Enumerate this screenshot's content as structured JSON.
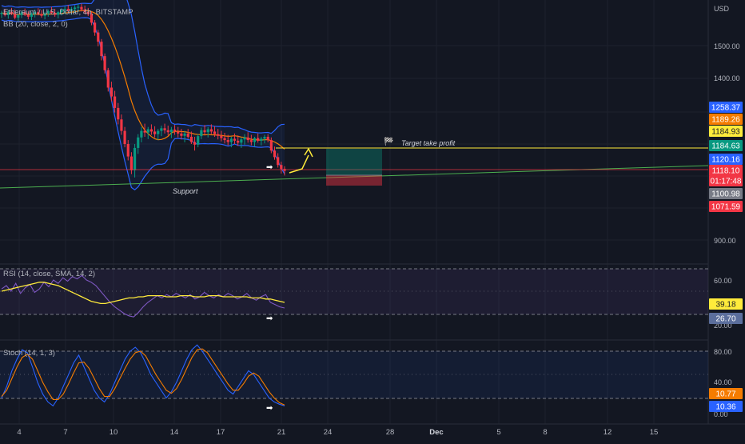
{
  "header": {
    "symbol_line": "Ethereum / U.S. Dollar, 4h, BITSTAMP",
    "bb_line": "BB (20, close, 2, 0)"
  },
  "price_axis": {
    "currency": "USD",
    "ticks": [
      "1500.00",
      "1400.00",
      "900.00"
    ],
    "tags": [
      {
        "label": "1258.37",
        "bg": "#2962ff",
        "fg": "#ffffff"
      },
      {
        "label": "1189.26",
        "bg": "#f57c00",
        "fg": "#ffffff"
      },
      {
        "label": "1184.93",
        "bg": "#ffeb3b",
        "fg": "#131722"
      },
      {
        "label": "1184.63",
        "bg": "#089981",
        "fg": "#ffffff"
      },
      {
        "label": "1120.16",
        "bg": "#2962ff",
        "fg": "#ffffff"
      },
      {
        "label": "1118.10",
        "bg": "#f23645",
        "fg": "#ffffff"
      },
      {
        "label": "01:17:48",
        "bg": "#f23645",
        "fg": "#ffffff"
      },
      {
        "label": "1100.98",
        "bg": "#787b86",
        "fg": "#ffffff"
      },
      {
        "label": "1071.59",
        "bg": "#f23645",
        "fg": "#ffffff"
      }
    ]
  },
  "annotations": {
    "target": "Target take profit",
    "support": "Support"
  },
  "rsi": {
    "label": "RSI (14, close, SMA, 14, 2)",
    "ticks": [
      "60.00",
      "20.00"
    ],
    "tags": [
      {
        "label": "39.18",
        "bg": "#ffeb3b",
        "fg": "#131722"
      },
      {
        "label": "26.70",
        "bg": "#5b6e9c",
        "fg": "#ffffff"
      }
    ]
  },
  "stoch": {
    "label": "Stoch (14, 1, 3)",
    "ticks": [
      "80.00",
      "40.00",
      "0.00"
    ],
    "tags": [
      {
        "label": "10.77",
        "bg": "#f57c00",
        "fg": "#ffffff"
      },
      {
        "label": "10.36",
        "bg": "#2962ff",
        "fg": "#ffffff"
      }
    ]
  },
  "time_axis": {
    "ticks": [
      "4",
      "7",
      "10",
      "14",
      "17",
      "21",
      "24",
      "28",
      "Dec",
      "5",
      "8",
      "12",
      "15"
    ]
  },
  "colors": {
    "up": "#089981",
    "down": "#f23645",
    "bb_band": "#2962ff",
    "bb_basis": "#f57c00",
    "rsi_line": "#7e57c2",
    "rsi_ma": "#ffeb3b",
    "stoch_k": "#2962ff",
    "stoch_d": "#f57c00",
    "target_line": "#ffeb3b",
    "support_line": "#4caf50"
  },
  "chart_data": [
    {
      "type": "candlestick",
      "pane": "price",
      "series": [
        {
          "name": "",
          "kind": "ohlc",
          "values": [
            [
              1596,
              1606,
              1584,
              1600
            ],
            [
              1600,
              1612,
              1589,
              1593
            ],
            [
              1593,
              1608,
              1582,
              1603
            ],
            [
              1603,
              1615,
              1593,
              1597
            ],
            [
              1597,
              1610,
              1580,
              1585
            ],
            [
              1585,
              1598,
              1576,
              1593
            ],
            [
              1593,
              1606,
              1584,
              1601
            ],
            [
              1601,
              1613,
              1590,
              1594
            ],
            [
              1594,
              1604,
              1580,
              1588
            ],
            [
              1588,
              1601,
              1578,
              1596
            ],
            [
              1596,
              1610,
              1586,
              1602
            ],
            [
              1602,
              1614,
              1592,
              1596
            ],
            [
              1596,
              1608,
              1585,
              1591
            ],
            [
              1591,
              1603,
              1580,
              1598
            ],
            [
              1598,
              1610,
              1588,
              1605
            ],
            [
              1605,
              1618,
              1595,
              1600
            ],
            [
              1600,
              1612,
              1588,
              1594
            ],
            [
              1594,
              1606,
              1583,
              1602
            ],
            [
              1602,
              1614,
              1592,
              1608
            ],
            [
              1608,
              1620,
              1596,
              1612
            ],
            [
              1612,
              1624,
              1600,
              1606
            ],
            [
              1606,
              1618,
              1594,
              1611
            ],
            [
              1611,
              1623,
              1600,
              1616
            ],
            [
              1616,
              1627,
              1603,
              1618
            ],
            [
              1618,
              1628,
              1604,
              1610
            ],
            [
              1610,
              1622,
              1596,
              1603
            ],
            [
              1603,
              1615,
              1590,
              1596
            ],
            [
              1596,
              1603,
              1562,
              1570
            ],
            [
              1570,
              1578,
              1530,
              1540
            ],
            [
              1540,
              1548,
              1498,
              1512
            ],
            [
              1512,
              1520,
              1455,
              1468
            ],
            [
              1468,
              1476,
              1415,
              1425
            ],
            [
              1425,
              1432,
              1360,
              1372
            ],
            [
              1372,
              1390,
              1330,
              1345
            ],
            [
              1345,
              1362,
              1296,
              1310
            ],
            [
              1310,
              1325,
              1260,
              1275
            ],
            [
              1275,
              1290,
              1228,
              1240
            ],
            [
              1240,
              1252,
              1190,
              1200
            ],
            [
              1200,
              1212,
              1150,
              1162
            ],
            [
              1162,
              1175,
              1108,
              1120
            ],
            [
              1120,
              1200,
              1098,
              1188
            ],
            [
              1188,
              1230,
              1170,
              1220
            ],
            [
              1220,
              1252,
              1205,
              1240
            ],
            [
              1240,
              1262,
              1222,
              1235
            ],
            [
              1235,
              1252,
              1215,
              1245
            ],
            [
              1245,
              1260,
              1228,
              1238
            ],
            [
              1238,
              1254,
              1220,
              1230
            ],
            [
              1230,
              1246,
              1212,
              1240
            ],
            [
              1240,
              1256,
              1224,
              1248
            ],
            [
              1248,
              1262,
              1232,
              1242
            ],
            [
              1242,
              1256,
              1226,
              1236
            ],
            [
              1236,
              1252,
              1218,
              1244
            ],
            [
              1244,
              1258,
              1228,
              1238
            ],
            [
              1238,
              1252,
              1220,
              1232
            ],
            [
              1232,
              1246,
              1214,
              1225
            ],
            [
              1225,
              1240,
              1205,
              1232
            ],
            [
              1232,
              1246,
              1216,
              1222
            ],
            [
              1222,
              1238,
              1200,
              1206
            ],
            [
              1206,
              1222,
              1180,
              1198
            ],
            [
              1198,
              1230,
              1190,
              1224
            ],
            [
              1224,
              1250,
              1215,
              1242
            ],
            [
              1242,
              1258,
              1228,
              1236
            ],
            [
              1236,
              1252,
              1220,
              1245
            ],
            [
              1245,
              1260,
              1230,
              1238
            ],
            [
              1238,
              1254,
              1222,
              1230
            ],
            [
              1230,
              1246,
              1214,
              1225
            ],
            [
              1225,
              1240,
              1208,
              1218
            ],
            [
              1218,
              1234,
              1202,
              1212
            ],
            [
              1212,
              1228,
              1196,
              1206
            ],
            [
              1206,
              1222,
              1190,
              1216
            ],
            [
              1216,
              1232,
              1200,
              1210
            ],
            [
              1210,
              1226,
              1194,
              1204
            ],
            [
              1204,
              1220,
              1188,
              1214
            ],
            [
              1214,
              1230,
              1198,
              1220
            ],
            [
              1220,
              1236,
              1204,
              1212
            ],
            [
              1212,
              1228,
              1196,
              1206
            ],
            [
              1206,
              1222,
              1192,
              1218
            ],
            [
              1218,
              1232,
              1204,
              1210
            ],
            [
              1210,
              1222,
              1196,
              1216
            ],
            [
              1216,
              1228,
              1202,
              1222
            ],
            [
              1222,
              1230,
              1205,
              1212
            ],
            [
              1212,
              1220,
              1172,
              1180
            ],
            [
              1180,
              1192,
              1152,
              1160
            ],
            [
              1160,
              1172,
              1128,
              1136
            ],
            [
              1136,
              1146,
              1110,
              1124
            ],
            [
              1124,
              1132,
              1104,
              1118
            ]
          ]
        }
      ]
    },
    {
      "type": "line",
      "pane": "rsi",
      "series": [
        {
          "name": "",
          "values": [
            52,
            55,
            50,
            57,
            48,
            53,
            56,
            49,
            52,
            58,
            54,
            60,
            57,
            62,
            59,
            63,
            61,
            64,
            60,
            58,
            55,
            50,
            45,
            40,
            36,
            33,
            30,
            28,
            27,
            31,
            36,
            40,
            43,
            46,
            44,
            47,
            45,
            48,
            46,
            44,
            47,
            43,
            45,
            49,
            46,
            44,
            47,
            45,
            48,
            46,
            43,
            45,
            48,
            44,
            42,
            45,
            47,
            40,
            38,
            36,
            35
          ]
        },
        {
          "name": "",
          "values": [
            50,
            51,
            52,
            53,
            54,
            55,
            56,
            57,
            58,
            58,
            57,
            56,
            55,
            53,
            51,
            49,
            47,
            45,
            43,
            41,
            40,
            39,
            39,
            40,
            41,
            42,
            43,
            44,
            44,
            45,
            45,
            46,
            46,
            46,
            46,
            45,
            45,
            45,
            46,
            46,
            46,
            45,
            45,
            45,
            46,
            46,
            46,
            45,
            45,
            45,
            45,
            45,
            45,
            44,
            44,
            44,
            43,
            43,
            42,
            41,
            40
          ]
        }
      ],
      "ylim": [
        0,
        100
      ]
    },
    {
      "type": "line",
      "pane": "stoch",
      "series": [
        {
          "name": "",
          "values": [
            20,
            35,
            55,
            70,
            82,
            78,
            60,
            40,
            25,
            15,
            10,
            20,
            35,
            50,
            65,
            75,
            60,
            45,
            30,
            20,
            15,
            25,
            40,
            55,
            70,
            80,
            85,
            78,
            65,
            50,
            40,
            30,
            20,
            28,
            40,
            55,
            70,
            82,
            88,
            80,
            70,
            60,
            50,
            40,
            30,
            25,
            35,
            45,
            55,
            50,
            40,
            30,
            20,
            15,
            12,
            10
          ]
        },
        {
          "name": "",
          "values": [
            22,
            30,
            45,
            60,
            72,
            76,
            70,
            55,
            40,
            28,
            18,
            18,
            25,
            38,
            52,
            65,
            66,
            58,
            45,
            32,
            22,
            22,
            32,
            45,
            58,
            70,
            78,
            80,
            74,
            62,
            50,
            40,
            30,
            26,
            32,
            44,
            58,
            72,
            82,
            83,
            78,
            68,
            58,
            48,
            38,
            30,
            30,
            38,
            48,
            52,
            48,
            38,
            28,
            20,
            14,
            11
          ]
        }
      ],
      "ylim": [
        0,
        100
      ]
    }
  ]
}
